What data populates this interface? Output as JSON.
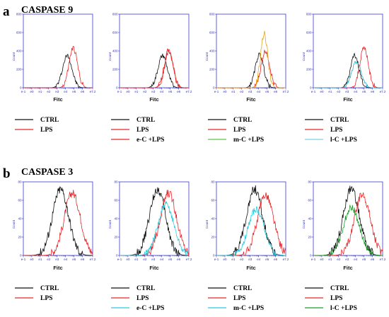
{
  "figure": {
    "panels": [
      {
        "letter": "a",
        "title": "CASPASE 9"
      },
      {
        "letter": "b",
        "title": "CASPASE 3"
      }
    ]
  },
  "colors": {
    "CTRL": "#111111",
    "LPS": "#e8272a",
    "e-C +LPS": "#e8272a",
    "m-C +LPS": "#e8a417",
    "l-C +LPS": "#1ab9c9",
    "caspase3_e-C +LPS": "#2ccbe0",
    "caspase3_m-C +LPS": "#2ccbe0",
    "caspase3_l-C +LPS": "#1a9a2a",
    "legend_e-C +LPS": "#e8272a",
    "legend_m-C +LPS": "#5fc24a",
    "legend_l-C +LPS": "#7fd0e6",
    "legend_caspase3_e-C +LPS": "#2ccbe0",
    "legend_caspase3_m-C +LPS": "#2ccbe0",
    "legend_caspase3_l-C +LPS": "#1a9a2a",
    "axis": "#3a3ad0"
  },
  "chart_data": [
    {
      "type": "histogram",
      "panel": "a",
      "xlabel": "Fitc",
      "ylabel": "Count",
      "x_ticks": [
        "e-1",
        "e0",
        "e1",
        "e2",
        "e3",
        "e4",
        "e5",
        "e6",
        "e7.2"
      ],
      "y_ticks": [
        "0",
        "200",
        "400",
        "600",
        "800"
      ],
      "ylim": [
        0,
        800
      ],
      "series": [
        {
          "name": "CTRL",
          "peak_x": 4.2,
          "peak_y": 350,
          "width": 0.55
        },
        {
          "name": "LPS",
          "peak_x": 4.9,
          "peak_y": 430,
          "width": 0.5
        }
      ],
      "legend": [
        "CTRL",
        "LPS"
      ]
    },
    {
      "type": "histogram",
      "panel": "a",
      "xlabel": "Fitc",
      "ylabel": "Count",
      "x_ticks": [
        "e-1",
        "e0",
        "e1",
        "e2",
        "e3",
        "e4",
        "e5",
        "e6",
        "e7.2"
      ],
      "y_ticks": [
        "0",
        "200",
        "400",
        "600",
        "800"
      ],
      "ylim": [
        0,
        800
      ],
      "series": [
        {
          "name": "CTRL",
          "peak_x": 4.1,
          "peak_y": 350,
          "width": 0.55
        },
        {
          "name": "LPS",
          "peak_x": 4.8,
          "peak_y": 410,
          "width": 0.5
        },
        {
          "name": "e-C +LPS",
          "peak_x": 4.85,
          "peak_y": 400,
          "width": 0.5
        }
      ],
      "legend": [
        "CTRL",
        "LPS",
        "e-C +LPS"
      ]
    },
    {
      "type": "histogram",
      "panel": "a",
      "xlabel": "Fitc",
      "ylabel": "Count",
      "x_ticks": [
        "e-1",
        "e0",
        "e1",
        "e2",
        "e3",
        "e4",
        "e5",
        "e6",
        "e7.2"
      ],
      "y_ticks": [
        "0",
        "200",
        "400",
        "600",
        "800"
      ],
      "ylim": [
        0,
        800
      ],
      "series": [
        {
          "name": "CTRL",
          "peak_x": 4.1,
          "peak_y": 360,
          "width": 0.5
        },
        {
          "name": "LPS",
          "peak_x": 4.8,
          "peak_y": 400,
          "width": 0.5
        },
        {
          "name": "m-C +LPS",
          "peak_x": 4.65,
          "peak_y": 580,
          "width": 0.42
        }
      ],
      "legend": [
        "CTRL",
        "LPS",
        "m-C +LPS"
      ]
    },
    {
      "type": "histogram",
      "panel": "a",
      "xlabel": "Fitc",
      "ylabel": "Count",
      "x_ticks": [
        "e-1",
        "e0",
        "e1",
        "e2",
        "e3",
        "e4",
        "e5",
        "e6",
        "e7.2"
      ],
      "y_ticks": [
        "0",
        "200",
        "400",
        "600",
        "800"
      ],
      "ylim": [
        0,
        800
      ],
      "series": [
        {
          "name": "CTRL",
          "peak_x": 3.9,
          "peak_y": 350,
          "width": 0.5
        },
        {
          "name": "LPS",
          "peak_x": 5.0,
          "peak_y": 430,
          "width": 0.5
        },
        {
          "name": "l-C +LPS",
          "peak_x": 4.1,
          "peak_y": 280,
          "width": 0.55
        }
      ],
      "legend": [
        "CTRL",
        "LPS",
        "l-C +LPS"
      ]
    },
    {
      "type": "histogram",
      "panel": "b",
      "xlabel": "Fitc",
      "ylabel": "Count",
      "x_ticks": [
        "e-1",
        "e0",
        "e1",
        "e2",
        "e3",
        "e4",
        "e5",
        "e6",
        "e7.2"
      ],
      "y_ticks": [
        "0",
        "20",
        "40",
        "60",
        "80"
      ],
      "ylim": [
        0,
        80
      ],
      "series": [
        {
          "name": "CTRL",
          "peak_x": 3.4,
          "peak_y": 72,
          "width": 0.95
        },
        {
          "name": "LPS",
          "peak_x": 4.8,
          "peak_y": 68,
          "width": 0.95
        }
      ],
      "legend": [
        "CTRL",
        "LPS"
      ]
    },
    {
      "type": "histogram",
      "panel": "b",
      "xlabel": "Fitc",
      "ylabel": "Count",
      "x_ticks": [
        "e-1",
        "e0",
        "e1",
        "e2",
        "e3",
        "e4",
        "e5",
        "e6",
        "e7.2"
      ],
      "y_ticks": [
        "0",
        "20",
        "40",
        "60",
        "80"
      ],
      "ylim": [
        0,
        80
      ],
      "series": [
        {
          "name": "CTRL",
          "peak_x": 3.5,
          "peak_y": 72,
          "width": 0.95
        },
        {
          "name": "LPS",
          "peak_x": 4.8,
          "peak_y": 68,
          "width": 0.95
        },
        {
          "name": "e-C +LPS",
          "peak_x": 4.5,
          "peak_y": 55,
          "width": 0.95
        }
      ],
      "legend": [
        "CTRL",
        "LPS",
        "e-C +LPS"
      ]
    },
    {
      "type": "histogram",
      "panel": "b",
      "xlabel": "Fitc",
      "ylabel": "Count",
      "x_ticks": [
        "e-1",
        "e0",
        "e1",
        "e2",
        "e3",
        "e4",
        "e5",
        "e6",
        "e7.2"
      ],
      "y_ticks": [
        "0",
        "20",
        "40",
        "60",
        "80"
      ],
      "ylim": [
        0,
        80
      ],
      "series": [
        {
          "name": "CTRL",
          "peak_x": 3.5,
          "peak_y": 72,
          "width": 0.95
        },
        {
          "name": "LPS",
          "peak_x": 4.8,
          "peak_y": 66,
          "width": 0.95
        },
        {
          "name": "m-C +LPS",
          "peak_x": 3.7,
          "peak_y": 50,
          "width": 0.95
        }
      ],
      "legend": [
        "CTRL",
        "LPS",
        "m-C +LPS"
      ]
    },
    {
      "type": "histogram",
      "panel": "b",
      "xlabel": "Fitc",
      "ylabel": "Count",
      "x_ticks": [
        "e-1",
        "e0",
        "e1",
        "e2",
        "e3",
        "e4",
        "e5",
        "e6",
        "e7.2"
      ],
      "y_ticks": [
        "0",
        "20",
        "40",
        "60",
        "80"
      ],
      "ylim": [
        0,
        80
      ],
      "series": [
        {
          "name": "CTRL",
          "peak_x": 3.5,
          "peak_y": 72,
          "width": 0.95
        },
        {
          "name": "LPS",
          "peak_x": 4.8,
          "peak_y": 66,
          "width": 0.95
        },
        {
          "name": "l-C +LPS",
          "peak_x": 3.5,
          "peak_y": 52,
          "width": 0.95
        }
      ],
      "legend": [
        "CTRL",
        "LPS",
        "l-C +LPS"
      ]
    }
  ]
}
